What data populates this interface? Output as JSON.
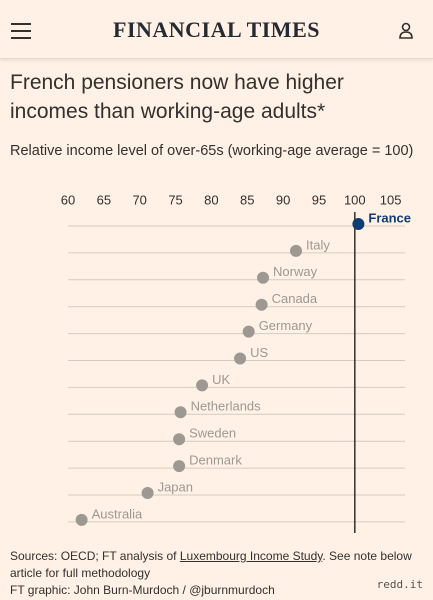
{
  "header": {
    "title": "FINANCIAL TIMES"
  },
  "chart_data": {
    "type": "dot",
    "title": "French pensioners now have higher incomes than working-age adults*",
    "subtitle": "Relative income level of over-65s (working-age average = 100)",
    "categories": [
      "France",
      "Italy",
      "Norway",
      "Canada",
      "Germany",
      "US",
      "UK",
      "Netherlands",
      "Sweden",
      "Denmark",
      "Japan",
      "Australia"
    ],
    "values": [
      100.5,
      91.8,
      87.2,
      87.0,
      85.2,
      84.0,
      78.7,
      75.7,
      75.5,
      75.5,
      71.1,
      61.9
    ],
    "colors": [
      "#0d3d73",
      "#9e9893",
      "#9e9893",
      "#9e9893",
      "#9e9893",
      "#9e9893",
      "#9e9893",
      "#9e9893",
      "#9e9893",
      "#9e9893",
      "#9e9893",
      "#9e9893"
    ],
    "xlim": [
      60,
      107
    ],
    "xticks": [
      60,
      65,
      70,
      75,
      80,
      85,
      90,
      95,
      100,
      105
    ],
    "reference_x": 100,
    "grid": true
  },
  "footer": {
    "source_parts": [
      "Sources: OECD; FT analysis of ",
      "Luxembourg Income Study",
      ". See note below article for full methodology"
    ],
    "credit": "FT graphic: John Burn-Murdoch / @jburnmurdoch",
    "watermark": "redd.it"
  }
}
